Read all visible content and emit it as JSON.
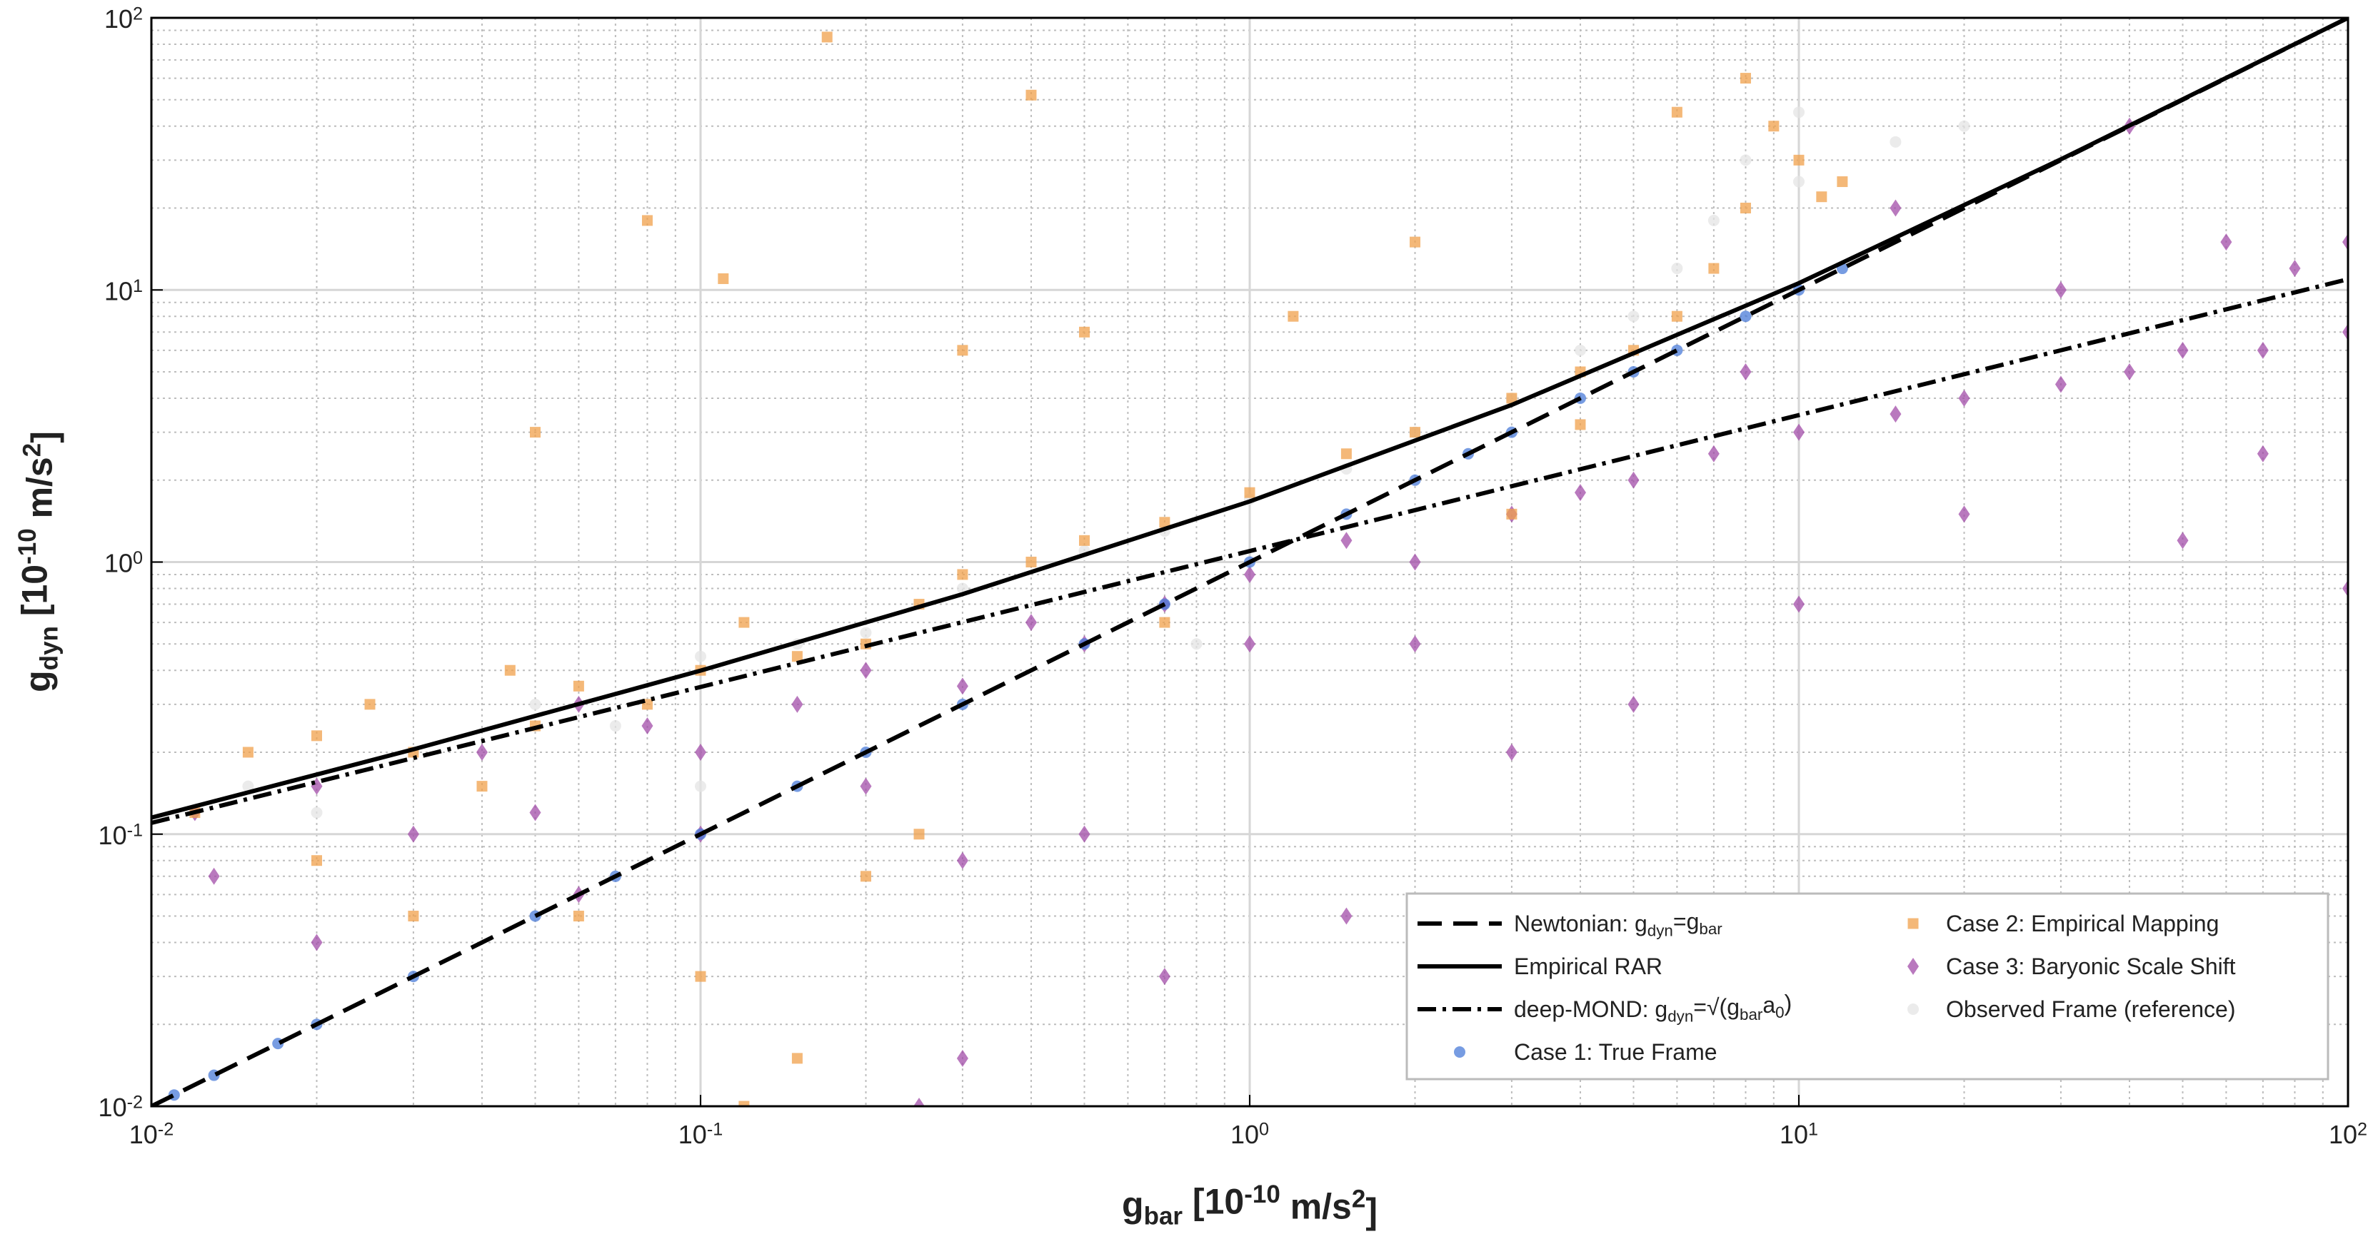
{
  "chart_data": {
    "type": "scatter",
    "xlabel": "g_{bar}  [10^{-10} m/s^{2}]",
    "ylabel": "g_{dyn}  [10^{-10} m/s^{2}]",
    "xscale": "log",
    "yscale": "log",
    "xlim": [
      0.01,
      100
    ],
    "ylim": [
      0.01,
      100
    ],
    "xticks": [
      {
        "value": 0.01,
        "label": "10^{-2}"
      },
      {
        "value": 0.1,
        "label": "10^{-1}"
      },
      {
        "value": 1,
        "label": "10^{0}"
      },
      {
        "value": 10,
        "label": "10^{1}"
      },
      {
        "value": 100,
        "label": "10^{2}"
      }
    ],
    "yticks": [
      {
        "value": 0.01,
        "label": "10^{-2}"
      },
      {
        "value": 0.1,
        "label": "10^{-1}"
      },
      {
        "value": 1,
        "label": "10^{0}"
      },
      {
        "value": 10,
        "label": "10^{1}"
      },
      {
        "value": 100,
        "label": "10^{2}"
      }
    ],
    "xminorticks": [
      0.02,
      0.03,
      0.04,
      0.05,
      0.06,
      0.07,
      0.08,
      0.09,
      0.2,
      0.3,
      0.4,
      0.5,
      0.6,
      0.7,
      0.8,
      0.9,
      2,
      3,
      4,
      5,
      6,
      7,
      8,
      9,
      20,
      30,
      40,
      50,
      60,
      70,
      80,
      90
    ],
    "yminorticks": [
      0.02,
      0.03,
      0.04,
      0.05,
      0.06,
      0.07,
      0.08,
      0.09,
      0.2,
      0.3,
      0.4,
      0.5,
      0.6,
      0.7,
      0.8,
      0.9,
      2,
      3,
      4,
      5,
      6,
      7,
      8,
      9,
      20,
      30,
      40,
      50,
      60,
      70,
      80,
      90
    ],
    "grid": true,
    "minor_grid": true,
    "legend": {
      "loc": "lower right",
      "columns": 2
    },
    "series": [
      {
        "name": "Newtonian: g_{dyn}=g_{bar}",
        "kind": "line",
        "style": "dashed",
        "color": "#000000",
        "x": [
          0.01,
          100
        ],
        "values": [
          0.01,
          100
        ]
      },
      {
        "name": "Empirical RAR",
        "kind": "line",
        "style": "solid",
        "color": "#000000",
        "x": [
          0.01,
          0.03,
          0.1,
          0.3,
          1,
          3,
          10,
          30,
          100
        ],
        "values": [
          0.115,
          0.205,
          0.399,
          0.762,
          1.67,
          3.78,
          10.59,
          30.2,
          100
        ]
      },
      {
        "name": "deep-MOND: g_{dyn}=√(g_{bar}a_{0})",
        "kind": "line",
        "style": "dashdot",
        "color": "#000000",
        "x": [
          0.01,
          100
        ],
        "values": [
          0.11,
          10.95
        ]
      },
      {
        "name": "Case 1: True Frame",
        "kind": "scatter",
        "marker": "circle",
        "color": "#4a7bd8",
        "x": [
          0.011,
          0.013,
          0.017,
          0.02,
          0.03,
          0.05,
          0.07,
          0.1,
          0.15,
          0.2,
          0.3,
          0.5,
          0.7,
          1,
          1.5,
          2,
          2.5,
          3,
          4,
          5,
          6,
          8,
          10,
          12
        ],
        "values": [
          0.011,
          0.013,
          0.017,
          0.02,
          0.03,
          0.05,
          0.07,
          0.1,
          0.15,
          0.2,
          0.3,
          0.5,
          0.7,
          1,
          1.5,
          2,
          2.5,
          3,
          4,
          5,
          6,
          8,
          10,
          12
        ]
      },
      {
        "name": "Case 2: Empirical Mapping",
        "kind": "scatter",
        "marker": "square",
        "color": "#f0a04b",
        "x": [
          0.012,
          0.015,
          0.02,
          0.025,
          0.02,
          0.03,
          0.04,
          0.05,
          0.06,
          0.08,
          0.1,
          0.12,
          0.15,
          0.2,
          0.25,
          0.3,
          0.4,
          0.5,
          0.7,
          1,
          1.5,
          2,
          3,
          4,
          5,
          6,
          7,
          8,
          9,
          10,
          12,
          11,
          0.08,
          0.17,
          0.4,
          0.11,
          0.05,
          0.3,
          0.2,
          0.1,
          0.06,
          0.15,
          0.25,
          0.5,
          1.2,
          2,
          3,
          0.7,
          0.03,
          0.045,
          4,
          6,
          8,
          0.12
        ],
        "values": [
          0.12,
          0.2,
          0.23,
          0.3,
          0.08,
          0.05,
          0.15,
          0.25,
          0.35,
          0.3,
          0.4,
          0.6,
          0.45,
          0.5,
          0.7,
          0.9,
          1.0,
          1.2,
          1.4,
          1.8,
          2.5,
          3,
          4,
          5,
          6,
          8,
          12,
          20,
          40,
          30,
          25,
          22,
          18,
          85,
          52,
          11,
          3,
          6,
          0.07,
          0.03,
          0.05,
          0.015,
          0.1,
          7,
          8,
          15,
          1.5,
          0.6,
          0.2,
          0.4,
          3.2,
          45,
          60,
          0.01
        ]
      },
      {
        "name": "Case 3: Baryonic Scale Shift",
        "kind": "scatter",
        "marker": "diamond",
        "color": "#a24ca8",
        "x": [
          0.012,
          0.013,
          0.02,
          0.02,
          0.03,
          0.04,
          0.05,
          0.06,
          0.08,
          0.1,
          0.1,
          0.15,
          0.2,
          0.2,
          0.3,
          0.4,
          0.5,
          0.7,
          1,
          1,
          1.5,
          2,
          3,
          4,
          5,
          7,
          10,
          15,
          20,
          30,
          40,
          50,
          70,
          100,
          100,
          80,
          60,
          40,
          30,
          20,
          15,
          10,
          5,
          3,
          1.5,
          0.7,
          0.3,
          0.25,
          0.5,
          8,
          50,
          70,
          100,
          0.06,
          0.3,
          2
        ],
        "values": [
          0.12,
          0.07,
          0.04,
          0.15,
          0.1,
          0.2,
          0.12,
          0.06,
          0.25,
          0.2,
          0.1,
          0.3,
          0.4,
          0.15,
          0.35,
          0.6,
          0.5,
          0.7,
          0.9,
          0.5,
          1.2,
          1.0,
          1.5,
          1.8,
          2,
          2.5,
          3,
          3.5,
          4,
          4.5,
          5,
          6,
          6,
          7,
          15,
          12,
          15,
          40,
          10,
          1.5,
          20,
          0.7,
          0.3,
          0.2,
          0.05,
          0.03,
          0.015,
          0.01,
          0.1,
          5,
          1.2,
          2.5,
          0.8,
          0.3,
          0.08,
          0.5
        ]
      },
      {
        "name": "Observed Frame (reference)",
        "kind": "scatter",
        "marker": "circle",
        "color": "#e4e4e4",
        "x": [
          0.015,
          0.02,
          0.03,
          0.05,
          0.07,
          0.1,
          0.15,
          0.2,
          0.3,
          0.5,
          0.7,
          1,
          1.5,
          2,
          3,
          4,
          5,
          6,
          7,
          8,
          10,
          10,
          15,
          20,
          0.8,
          0.1
        ],
        "values": [
          0.15,
          0.12,
          0.2,
          0.3,
          0.25,
          0.45,
          0.5,
          0.55,
          0.8,
          1.1,
          1.3,
          1.7,
          2.2,
          3,
          4,
          6,
          8,
          12,
          18,
          30,
          45,
          25,
          35,
          40,
          0.5,
          0.15
        ]
      }
    ]
  }
}
